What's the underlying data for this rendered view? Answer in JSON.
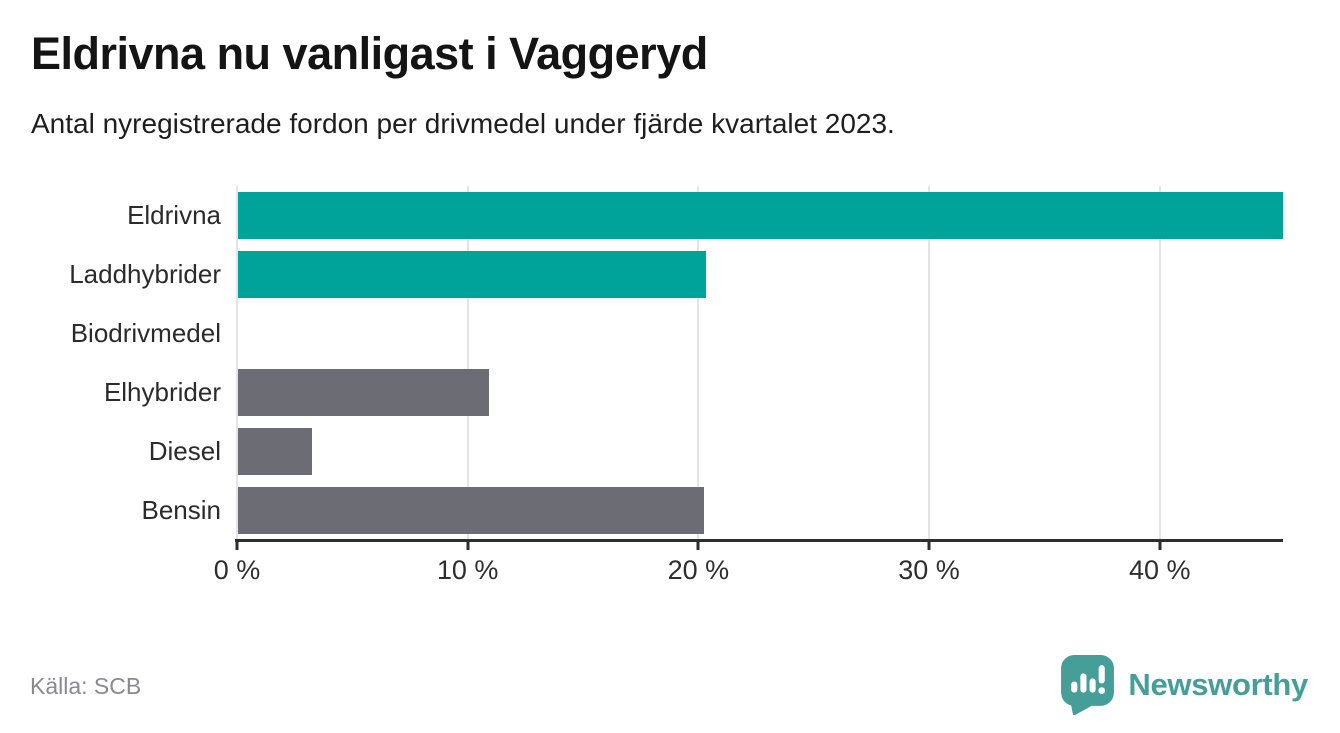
{
  "header": {
    "title": "Eldrivna nu vanligast i Vaggeryd",
    "subtitle": "Antal nyregistrerade fordon per drivmedel under fjärde kvartalet 2023."
  },
  "chart_data": {
    "type": "bar",
    "orientation": "horizontal",
    "title": "Eldrivna nu vanligast i Vaggeryd",
    "subtitle": "Antal nyregistrerade fordon per drivmedel under fjärde kvartalet 2023.",
    "categories": [
      "Eldrivna",
      "Laddhybrider",
      "Biodrivmedel",
      "Elhybrider",
      "Diesel",
      "Bensin"
    ],
    "values": [
      45.3,
      20.3,
      0,
      10.9,
      3.2,
      20.2
    ],
    "unit": "%",
    "bar_colors": [
      "#00A399",
      "#00A399",
      "#6C6C74",
      "#6C6C74",
      "#6C6C74",
      "#6C6C74"
    ],
    "highlight_color": "#00A399",
    "default_color": "#6C6C74",
    "xlabel": "",
    "ylabel": "",
    "xlim": [
      0,
      45.3
    ],
    "xticks": [
      0,
      10,
      20,
      30,
      40
    ],
    "xtick_labels": [
      "0 %",
      "10 %",
      "20 %",
      "30 %",
      "40 %"
    ],
    "grid": "vertical",
    "legend": "none"
  },
  "footer": {
    "source": "Källa: SCB",
    "brand": "Newsworthy",
    "brand_color": "#459E97"
  }
}
